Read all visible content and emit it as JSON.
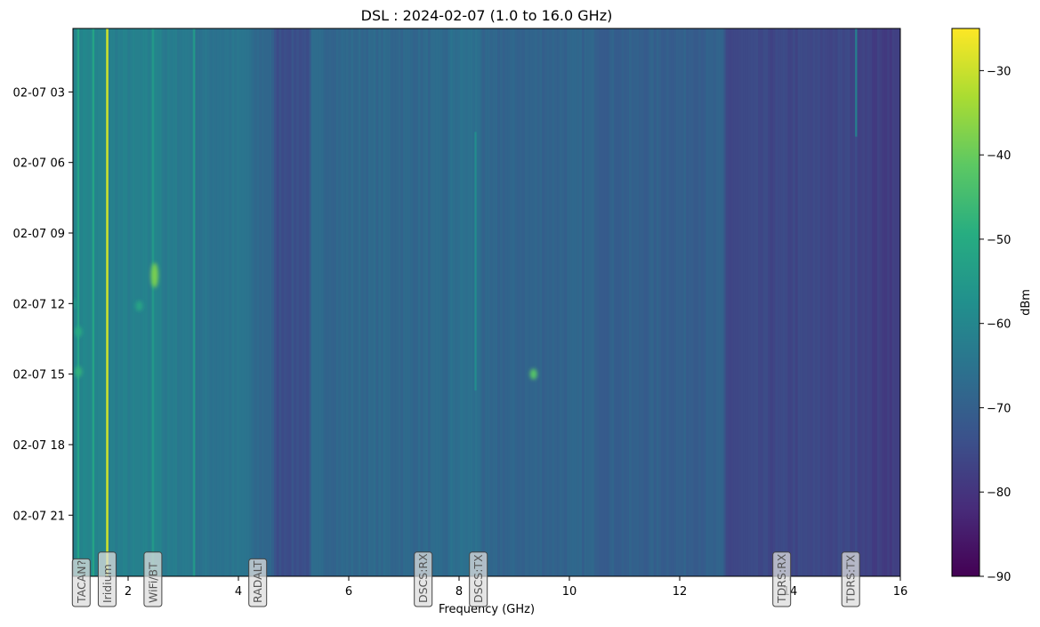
{
  "chart_data": {
    "type": "heatmap",
    "title": "DSL : 2024-02-07 (1.0 to 16.0 GHz)",
    "xlabel": "Frequency (GHz)",
    "ylabel": "",
    "xlim": [
      1.0,
      16.0
    ],
    "ylim_labels_top_to_bottom": [
      "02-07 03",
      "02-07 06",
      "02-07 09",
      "02-07 12",
      "02-07 15",
      "02-07 18",
      "02-07 21"
    ],
    "x_ticks": [
      2,
      4,
      6,
      8,
      10,
      12,
      14,
      16
    ],
    "y_ticks": [
      {
        "label": "02-07 03",
        "hour": 3
      },
      {
        "label": "02-07 06",
        "hour": 6
      },
      {
        "label": "02-07 09",
        "hour": 9
      },
      {
        "label": "02-07 12",
        "hour": 12
      },
      {
        "label": "02-07 15",
        "hour": 15
      },
      {
        "label": "02-07 18",
        "hour": 18
      },
      {
        "label": "02-07 21",
        "hour": 21
      }
    ],
    "time_range_hours": [
      0.3,
      23.6
    ],
    "colorbar": {
      "label": "dBm",
      "range": [
        -90,
        -25
      ],
      "ticks": [
        -30,
        -40,
        -50,
        -60,
        -70,
        -80,
        -90
      ],
      "colormap": "viridis"
    },
    "background_regions": [
      {
        "from": 1.0,
        "to": 1.4,
        "dbm": -60
      },
      {
        "from": 1.4,
        "to": 1.6,
        "dbm": -61
      },
      {
        "from": 1.6,
        "to": 2.4,
        "dbm": -62
      },
      {
        "from": 2.4,
        "to": 2.6,
        "dbm": -60
      },
      {
        "from": 2.6,
        "to": 3.2,
        "dbm": -63
      },
      {
        "from": 3.2,
        "to": 4.2,
        "dbm": -65
      },
      {
        "from": 4.2,
        "to": 4.6,
        "dbm": -68
      },
      {
        "from": 4.6,
        "to": 5.3,
        "dbm": -74
      },
      {
        "from": 5.3,
        "to": 7.8,
        "dbm": -68
      },
      {
        "from": 7.8,
        "to": 8.4,
        "dbm": -66
      },
      {
        "from": 8.4,
        "to": 10.5,
        "dbm": -69
      },
      {
        "from": 10.5,
        "to": 12.8,
        "dbm": -70
      },
      {
        "from": 12.8,
        "to": 15.4,
        "dbm": -76
      },
      {
        "from": 15.4,
        "to": 16.0,
        "dbm": -78
      }
    ],
    "vertical_lines": [
      {
        "freq": 1.1,
        "dbm": -52,
        "from_hour": 0.3,
        "to_hour": 23.6
      },
      {
        "freq": 1.37,
        "dbm": -52,
        "from_hour": 0.3,
        "to_hour": 23.6
      },
      {
        "freq": 1.62,
        "dbm": -30,
        "from_hour": 0.3,
        "to_hour": 23.6
      },
      {
        "freq": 2.45,
        "dbm": -55,
        "from_hour": 0.3,
        "to_hour": 23.6
      },
      {
        "freq": 3.2,
        "dbm": -55,
        "from_hour": 0.3,
        "to_hour": 23.6
      },
      {
        "freq": 8.3,
        "dbm": -58,
        "from_hour": 4.7,
        "to_hour": 15.7
      },
      {
        "freq": 15.2,
        "dbm": -62,
        "from_hour": 0.3,
        "to_hour": 4.9
      }
    ],
    "hotspots": [
      {
        "freq": 2.48,
        "hour": 10.8,
        "dbm": -38
      },
      {
        "freq": 1.0,
        "hour": 12.0,
        "dbm": -55
      },
      {
        "freq": 2.2,
        "hour": 12.1,
        "dbm": -52
      },
      {
        "freq": 9.35,
        "hour": 15.0,
        "dbm": -42
      },
      {
        "freq": 1.1,
        "hour": 14.9,
        "dbm": -48
      },
      {
        "freq": 1.1,
        "hour": 13.2,
        "dbm": -50
      }
    ],
    "band_labels": [
      {
        "text": "TACAN?",
        "freq": 1.15
      },
      {
        "text": "Iridium",
        "freq": 1.62
      },
      {
        "text": "WiFi/BT",
        "freq": 2.45
      },
      {
        "text": "RADALT",
        "freq": 4.35
      },
      {
        "text": "DSCS:RX",
        "freq": 7.35
      },
      {
        "text": "DSCS:TX",
        "freq": 8.35
      },
      {
        "text": "TDRS:RX",
        "freq": 13.85
      },
      {
        "text": "TDRS:TX",
        "freq": 15.1
      }
    ]
  }
}
